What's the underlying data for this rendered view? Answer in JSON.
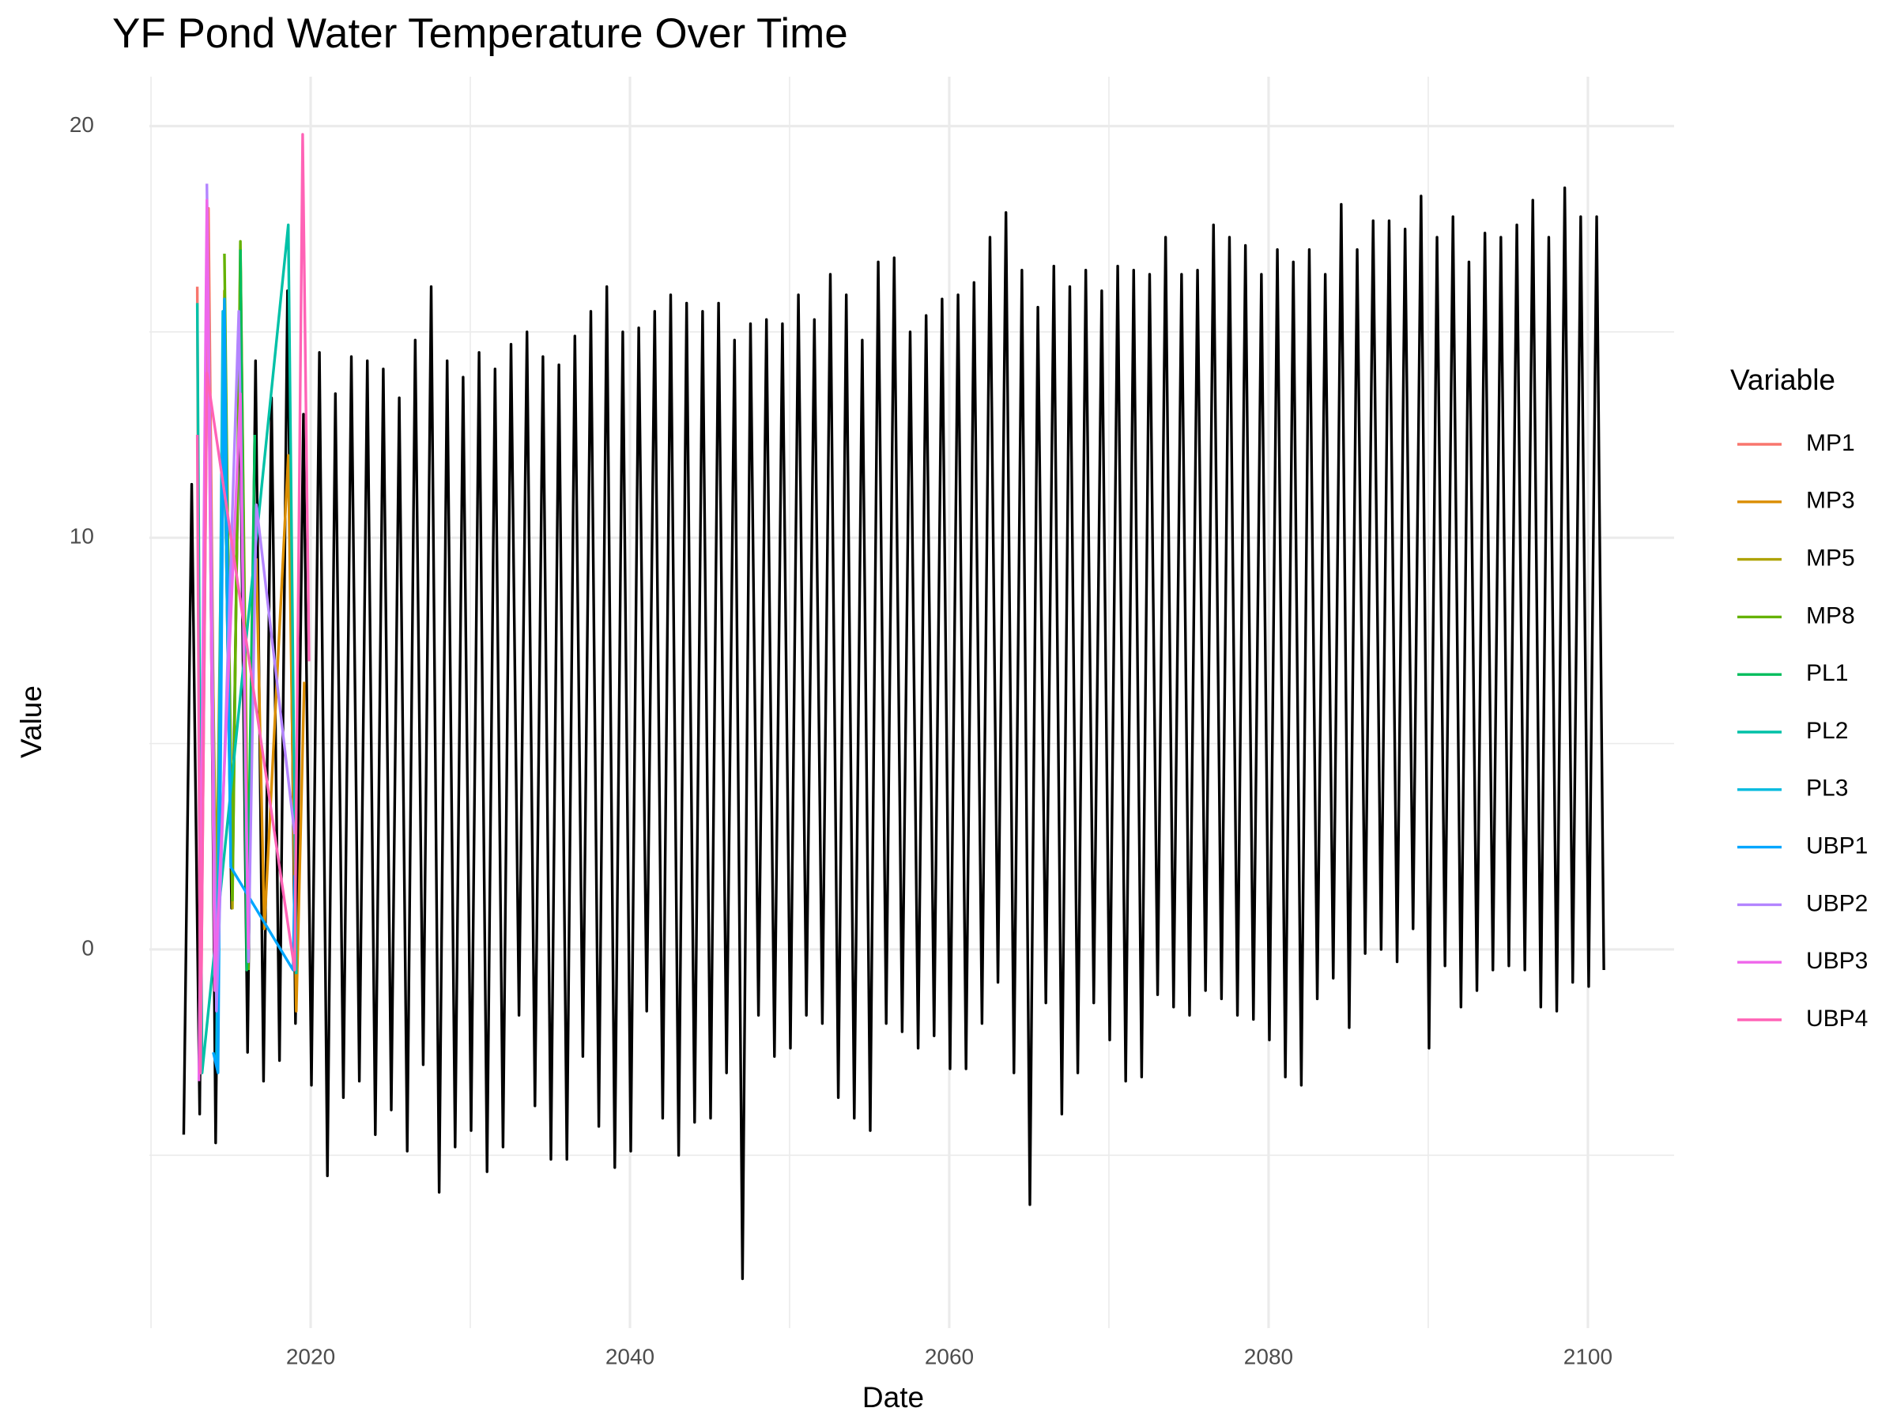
{
  "chart_data": {
    "type": "line",
    "title": "YF Pond Water Temperature Over Time",
    "x_label": "Date",
    "y_label": "Value",
    "legend_title": "Variable",
    "legend": "right",
    "grid": true,
    "xlim": [
      2009.9,
      2105.4
    ],
    "xticks": [
      2020,
      2040,
      2060,
      2080,
      2100
    ],
    "x_minor_grid": [
      2010,
      2030,
      2050,
      2070,
      2090
    ],
    "ylim": [
      -9.2,
      21.2
    ],
    "yticks": [
      0,
      10,
      20
    ],
    "y_minor_grid": [
      -5,
      5,
      15
    ],
    "series": [
      {
        "color": "#000000",
        "x": [
          2012.05,
          2012.55,
          2013.05,
          2013.55,
          2014.05,
          2014.55,
          2015.05,
          2015.55,
          2016.05,
          2016.55,
          2017.05,
          2017.55,
          2018.05,
          2018.55,
          2019.05,
          2019.55,
          2020.05,
          2020.55,
          2021.05,
          2021.55,
          2022.05,
          2022.55,
          2023.05,
          2023.55,
          2024.05,
          2024.55,
          2025.05,
          2025.55,
          2026.05,
          2026.55,
          2027.05,
          2027.55,
          2028.05,
          2028.55,
          2029.05,
          2029.55,
          2030.05,
          2030.55,
          2031.05,
          2031.55,
          2032.05,
          2032.55,
          2033.05,
          2033.55,
          2034.05,
          2034.55,
          2035.05,
          2035.55,
          2036.05,
          2036.55,
          2037.05,
          2037.55,
          2038.05,
          2038.55,
          2039.05,
          2039.55,
          2040.05,
          2040.55,
          2041.05,
          2041.55,
          2042.05,
          2042.55,
          2043.05,
          2043.55,
          2044.05,
          2044.55,
          2045.05,
          2045.55,
          2046.05,
          2046.55,
          2047.05,
          2047.55,
          2048.05,
          2048.55,
          2049.05,
          2049.55,
          2050.05,
          2050.55,
          2051.05,
          2051.55,
          2052.05,
          2052.55,
          2053.05,
          2053.55,
          2054.05,
          2054.55,
          2055.05,
          2055.55,
          2056.05,
          2056.55,
          2057.05,
          2057.55,
          2058.05,
          2058.55,
          2059.05,
          2059.55,
          2060.05,
          2060.55,
          2061.05,
          2061.55,
          2062.05,
          2062.55,
          2063.05,
          2063.55,
          2064.05,
          2064.55,
          2065.05,
          2065.55,
          2066.05,
          2066.55,
          2067.05,
          2067.55,
          2068.05,
          2068.55,
          2069.05,
          2069.55,
          2070.05,
          2070.55,
          2071.05,
          2071.55,
          2072.05,
          2072.55,
          2073.05,
          2073.55,
          2074.05,
          2074.55,
          2075.05,
          2075.55,
          2076.05,
          2076.55,
          2077.05,
          2077.55,
          2078.05,
          2078.55,
          2079.05,
          2079.55,
          2080.05,
          2080.55,
          2081.05,
          2081.55,
          2082.05,
          2082.55,
          2083.05,
          2083.55,
          2084.05,
          2084.55,
          2085.05,
          2085.55,
          2086.05,
          2086.55,
          2087.05,
          2087.55,
          2088.05,
          2088.55,
          2089.05,
          2089.55,
          2090.05,
          2090.55,
          2091.05,
          2091.55,
          2092.05,
          2092.55,
          2093.05,
          2093.55,
          2094.05,
          2094.55,
          2095.05,
          2095.55,
          2096.05,
          2096.55,
          2097.05,
          2097.55,
          2098.05,
          2098.55,
          2099.05,
          2099.55,
          2100.05,
          2100.55,
          2101.0
        ],
        "values": [
          -4.5,
          11.3,
          -4.0,
          18.0,
          -4.7,
          14.0,
          1.0,
          14.2,
          -2.5,
          14.3,
          -3.2,
          13.4,
          -2.7,
          16.0,
          -1.8,
          13.0,
          -3.3,
          14.5,
          -5.5,
          13.5,
          -3.6,
          14.4,
          -3.2,
          14.3,
          -4.5,
          14.1,
          -3.9,
          13.4,
          -4.9,
          14.8,
          -2.8,
          16.1,
          -5.9,
          14.3,
          -4.8,
          13.9,
          -4.4,
          14.5,
          -5.4,
          14.1,
          -4.8,
          14.7,
          -1.6,
          15.0,
          -3.8,
          14.4,
          -5.1,
          14.2,
          -5.1,
          14.9,
          -2.6,
          15.5,
          -4.3,
          16.1,
          -5.3,
          15.0,
          -4.9,
          15.1,
          -1.5,
          15.5,
          -4.1,
          15.9,
          -5.0,
          15.7,
          -4.2,
          15.5,
          -4.1,
          15.7,
          -3.0,
          14.8,
          -8.0,
          15.2,
          -1.6,
          15.3,
          -2.6,
          15.2,
          -2.4,
          15.9,
          -1.6,
          15.3,
          -1.8,
          16.4,
          -3.6,
          15.9,
          -4.1,
          14.8,
          -4.4,
          16.7,
          -1.8,
          16.8,
          -2.0,
          15.0,
          -2.4,
          15.4,
          -2.1,
          15.8,
          -2.9,
          15.9,
          -2.9,
          16.2,
          -1.8,
          17.3,
          -0.8,
          17.9,
          -3.0,
          16.5,
          -6.2,
          15.6,
          -1.3,
          16.6,
          -4.0,
          16.1,
          -3.0,
          16.5,
          -1.3,
          16.0,
          -2.2,
          16.6,
          -3.2,
          16.5,
          -3.1,
          16.4,
          -1.1,
          17.3,
          -1.4,
          16.4,
          -1.6,
          16.5,
          -1.0,
          17.6,
          -1.2,
          17.3,
          -1.6,
          17.1,
          -1.7,
          16.4,
          -2.2,
          17.0,
          -3.1,
          16.7,
          -3.3,
          17.0,
          -1.2,
          16.4,
          -0.7,
          18.1,
          -1.9,
          17.0,
          -0.1,
          17.7,
          0.0,
          17.7,
          -0.3,
          17.5,
          0.5,
          18.3,
          -2.4,
          17.3,
          -0.4,
          17.8,
          -1.4,
          16.7,
          -1.0,
          17.4,
          -0.5,
          17.3,
          -0.4,
          17.6,
          -0.5,
          18.2,
          -1.4,
          17.3,
          -1.5,
          18.5,
          -0.8,
          17.8,
          -0.9,
          17.8,
          -0.5
        ]
      },
      {
        "name": "MP1",
        "color": "#F8766D",
        "x": [
          2012.9,
          2013.1,
          2013.6,
          2014.1
        ],
        "values": [
          16.1,
          -3.0,
          18.0,
          -1.5
        ]
      },
      {
        "name": "MP3",
        "color": "#DB8E00",
        "x": [
          2016.6,
          2017.1,
          2018.6,
          2019.1,
          2019.6
        ],
        "values": [
          9.5,
          0.5,
          12.0,
          -1.5,
          6.5
        ]
      },
      {
        "name": "MP5",
        "color": "#AEA200",
        "x": [
          2013.6,
          2014.1,
          2014.6,
          2015.1,
          2015.6,
          2016.1
        ],
        "values": [
          14.0,
          1.0,
          16.0,
          1.0,
          17.0,
          1.0
        ]
      },
      {
        "name": "MP8",
        "color": "#64B200",
        "x": [
          2014.6,
          2015.1,
          2015.6,
          2016.1
        ],
        "values": [
          16.9,
          1.2,
          17.2,
          -0.5
        ]
      },
      {
        "name": "PL1",
        "color": "#00BD5C",
        "x": [
          2015.6,
          2016.0,
          2016.5
        ],
        "values": [
          17.0,
          -0.5,
          12.5
        ]
      },
      {
        "name": "PL2",
        "color": "#00C1A7",
        "x": [
          2012.9,
          2013.2,
          2018.6,
          2019.1
        ],
        "values": [
          15.7,
          -3.0,
          17.6,
          -0.6
        ]
      },
      {
        "name": "PL3",
        "color": "#00BADE",
        "x": [
          2014.1,
          2014.5,
          2015.0
        ],
        "values": [
          -2.8,
          15.5,
          2.0
        ]
      },
      {
        "name": "UBP1",
        "color": "#00A6FF",
        "x": [
          2013.9,
          2014.2,
          2014.6,
          2015.0,
          2018.9,
          2019.0
        ],
        "values": [
          -2.5,
          -3.0,
          15.8,
          2.0,
          -0.5,
          1.8
        ]
      },
      {
        "name": "UBP2",
        "color": "#B385FF",
        "x": [
          2013.5,
          2014.1,
          2015.5,
          2016.1,
          2016.6,
          2019.0
        ],
        "values": [
          18.6,
          -1.5,
          15.5,
          -0.3,
          10.8,
          2.8
        ]
      },
      {
        "name": "UBP3",
        "color": "#EF67EB",
        "x": [
          2013.0,
          2013.5,
          2014.0,
          2015.6,
          2016.1
        ],
        "values": [
          -3.2,
          18.2,
          -1.0,
          13.5,
          0.0
        ]
      },
      {
        "name": "UBP4",
        "color": "#FF63B6",
        "x": [
          2012.9,
          2013.1,
          2013.5,
          2019.0,
          2019.5,
          2019.9
        ],
        "values": [
          12.5,
          -3.0,
          14.0,
          -0.5,
          19.8,
          7.0
        ]
      }
    ]
  }
}
